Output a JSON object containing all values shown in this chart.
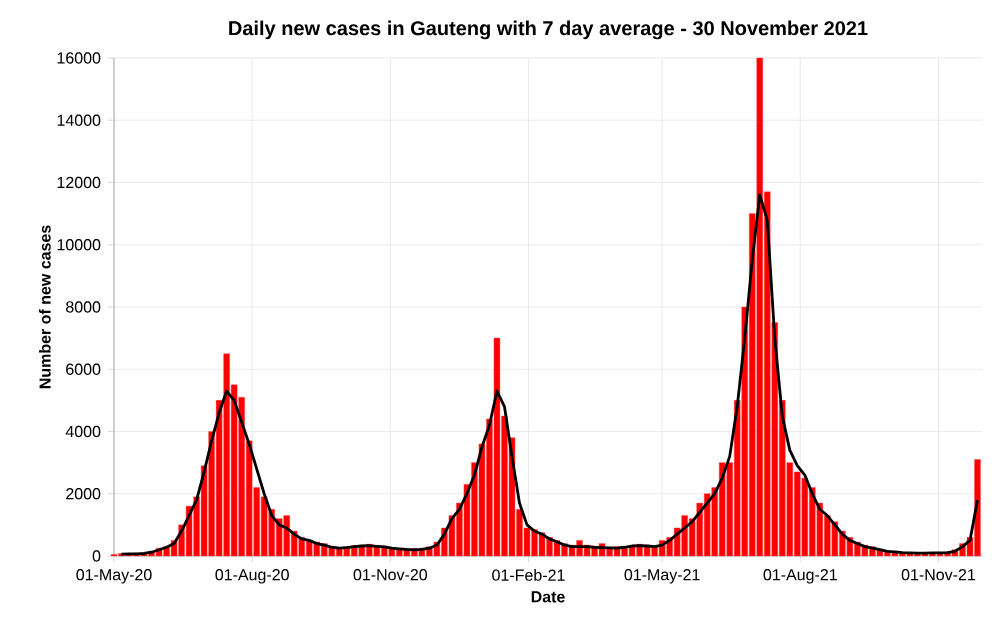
{
  "chart_data": {
    "type": "bar",
    "title": "Daily new cases in Gauteng with 7 day average - 30 November 2021",
    "xlabel": "Date",
    "ylabel": "Number of new cases",
    "x": [
      "2020-05-01",
      "2020-05-06",
      "2020-05-11",
      "2020-05-16",
      "2020-05-21",
      "2020-05-26",
      "2020-05-31",
      "2020-06-05",
      "2020-06-10",
      "2020-06-15",
      "2020-06-20",
      "2020-06-25",
      "2020-06-30",
      "2020-07-05",
      "2020-07-10",
      "2020-07-15",
      "2020-07-20",
      "2020-07-25",
      "2020-07-30",
      "2020-08-04",
      "2020-08-09",
      "2020-08-14",
      "2020-08-19",
      "2020-08-24",
      "2020-08-29",
      "2020-09-03",
      "2020-09-08",
      "2020-09-13",
      "2020-09-18",
      "2020-09-23",
      "2020-09-28",
      "2020-10-03",
      "2020-10-08",
      "2020-10-13",
      "2020-10-18",
      "2020-10-23",
      "2020-10-28",
      "2020-11-02",
      "2020-11-07",
      "2020-11-12",
      "2020-11-17",
      "2020-11-22",
      "2020-11-27",
      "2020-12-02",
      "2020-12-07",
      "2020-12-12",
      "2020-12-17",
      "2020-12-22",
      "2020-12-27",
      "2021-01-01",
      "2021-01-06",
      "2021-01-11",
      "2021-01-16",
      "2021-01-21",
      "2021-01-26",
      "2021-01-31",
      "2021-02-05",
      "2021-02-10",
      "2021-02-15",
      "2021-02-20",
      "2021-02-25",
      "2021-03-02",
      "2021-03-07",
      "2021-03-12",
      "2021-03-17",
      "2021-03-22",
      "2021-03-27",
      "2021-04-01",
      "2021-04-06",
      "2021-04-11",
      "2021-04-16",
      "2021-04-21",
      "2021-04-26",
      "2021-05-01",
      "2021-05-06",
      "2021-05-11",
      "2021-05-16",
      "2021-05-21",
      "2021-05-26",
      "2021-05-31",
      "2021-06-05",
      "2021-06-10",
      "2021-06-15",
      "2021-06-20",
      "2021-06-25",
      "2021-06-30",
      "2021-07-05",
      "2021-07-10",
      "2021-07-15",
      "2021-07-20",
      "2021-07-25",
      "2021-07-30",
      "2021-08-04",
      "2021-08-09",
      "2021-08-14",
      "2021-08-19",
      "2021-08-24",
      "2021-08-29",
      "2021-09-03",
      "2021-09-08",
      "2021-09-13",
      "2021-09-18",
      "2021-09-23",
      "2021-09-28",
      "2021-10-03",
      "2021-10-08",
      "2021-10-13",
      "2021-10-18",
      "2021-10-23",
      "2021-10-28",
      "2021-11-02",
      "2021-11-07",
      "2021-11-12",
      "2021-11-17",
      "2021-11-22",
      "2021-11-27"
    ],
    "series": [
      {
        "color": "#ff0000",
        "values": [
          50,
          80,
          60,
          90,
          100,
          150,
          250,
          300,
          500,
          1000,
          1600,
          1900,
          2900,
          4000,
          5000,
          6500,
          5500,
          5100,
          3700,
          2200,
          1900,
          1500,
          1200,
          1300,
          800,
          600,
          500,
          450,
          400,
          300,
          260,
          300,
          330,
          350,
          380,
          300,
          320,
          270,
          250,
          220,
          230,
          250,
          300,
          450,
          900,
          1300,
          1700,
          2300,
          3000,
          3600,
          4400,
          7000,
          4500,
          3800,
          1500,
          900,
          850,
          750,
          600,
          500,
          400,
          350,
          500,
          350,
          300,
          400,
          280,
          300,
          250,
          350,
          380,
          350,
          320,
          500,
          600,
          900,
          1300,
          1200,
          1700,
          2000,
          2200,
          3000,
          3000,
          5000,
          8000,
          11000,
          16000,
          11700,
          7500,
          5000,
          3000,
          2700,
          2500,
          2200,
          1700,
          1300,
          1100,
          800,
          600,
          450,
          350,
          300,
          220,
          170,
          150,
          120,
          110,
          100,
          100,
          110,
          120,
          130,
          200,
          400,
          600,
          3100
        ]
      },
      {
        "type": "line",
        "color": "#000000",
        "values": [
          null,
          60,
          70,
          70,
          80,
          120,
          200,
          280,
          400,
          800,
          1300,
          1800,
          2700,
          3700,
          4600,
          5300,
          5000,
          4300,
          3600,
          2800,
          2000,
          1300,
          1000,
          900,
          700,
          550,
          500,
          400,
          350,
          280,
          250,
          270,
          300,
          320,
          330,
          310,
          290,
          250,
          230,
          210,
          200,
          210,
          250,
          350,
          700,
          1200,
          1500,
          2000,
          2600,
          3500,
          4200,
          5300,
          4800,
          3200,
          1700,
          1000,
          800,
          700,
          550,
          450,
          350,
          300,
          300,
          300,
          280,
          270,
          260,
          250,
          280,
          320,
          330,
          320,
          300,
          350,
          500,
          700,
          900,
          1100,
          1400,
          1700,
          2000,
          2500,
          3200,
          4800,
          7000,
          9500,
          11600,
          10800,
          7000,
          4500,
          3400,
          2900,
          2600,
          2000,
          1500,
          1300,
          1000,
          700,
          500,
          400,
          300,
          250,
          200,
          150,
          130,
          110,
          100,
          90,
          90,
          100,
          100,
          110,
          150,
          300,
          500,
          1800
        ]
      }
    ],
    "xlim": [
      "2020-05-01",
      "2021-11-30"
    ],
    "xticks": [
      {
        "value": "2020-05-01",
        "label": "01-May-20"
      },
      {
        "value": "2020-08-01",
        "label": "01-Aug-20"
      },
      {
        "value": "2020-11-01",
        "label": "01-Nov-20"
      },
      {
        "value": "2021-02-01",
        "label": "01-Feb-21"
      },
      {
        "value": "2021-05-01",
        "label": "01-May-21"
      },
      {
        "value": "2021-08-01",
        "label": "01-Aug-21"
      },
      {
        "value": "2021-11-01",
        "label": "01-Nov-21"
      }
    ],
    "ylim": [
      0,
      16000
    ],
    "yticks": [
      0,
      2000,
      4000,
      6000,
      8000,
      10000,
      12000,
      14000,
      16000
    ],
    "grid": true,
    "line_style": "solid",
    "marker": "none"
  }
}
